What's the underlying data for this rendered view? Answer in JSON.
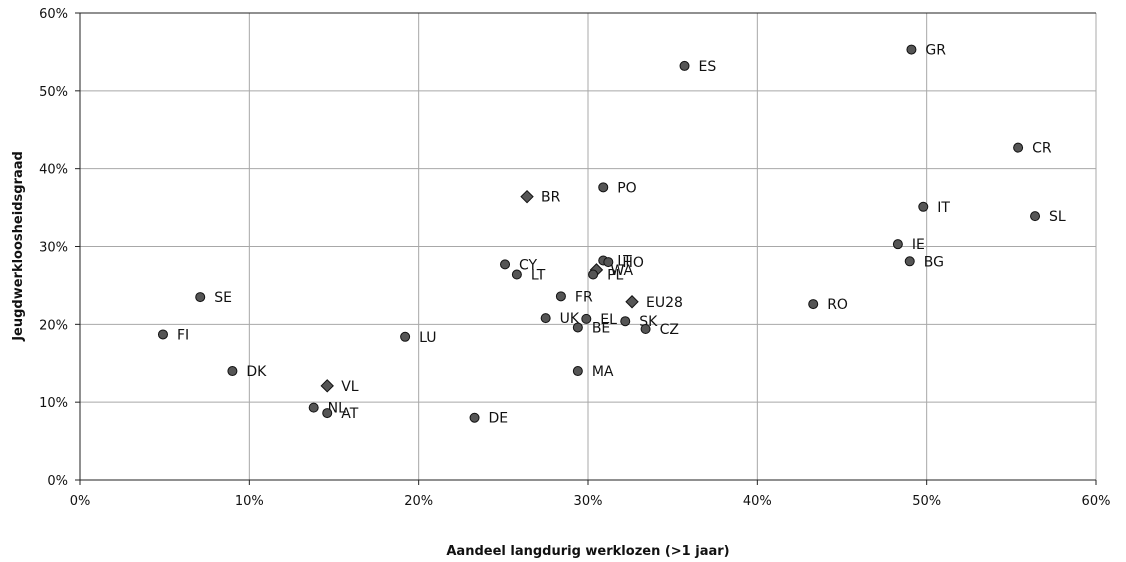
{
  "chart_data": {
    "type": "scatter",
    "xlabel": "Aandeel langdurig werklozen (>1 jaar)",
    "ylabel": "Jeugdwerkloosheidsgraad",
    "xlim": [
      0,
      60
    ],
    "ylim": [
      0,
      60
    ],
    "x_ticks": [
      "0%",
      "10%",
      "20%",
      "30%",
      "40%",
      "50%",
      "60%"
    ],
    "y_ticks": [
      "0%",
      "10%",
      "20%",
      "30%",
      "40%",
      "50%",
      "60%"
    ],
    "grid": true,
    "marker_color": "#555555",
    "points": [
      {
        "label": "ES",
        "x": 35.7,
        "y": 53.2,
        "shape": "circle"
      },
      {
        "label": "GR",
        "x": 49.1,
        "y": 55.3,
        "shape": "circle"
      },
      {
        "label": "CR",
        "x": 55.4,
        "y": 42.7,
        "shape": "circle"
      },
      {
        "label": "PO",
        "x": 30.9,
        "y": 37.6,
        "shape": "circle"
      },
      {
        "label": "BR",
        "x": 26.4,
        "y": 36.4,
        "shape": "diamond"
      },
      {
        "label": "IT",
        "x": 49.8,
        "y": 35.1,
        "shape": "circle"
      },
      {
        "label": "SL",
        "x": 56.4,
        "y": 33.9,
        "shape": "circle"
      },
      {
        "label": "IE",
        "x": 48.3,
        "y": 30.3,
        "shape": "circle"
      },
      {
        "label": "BG",
        "x": 49.0,
        "y": 28.1,
        "shape": "circle"
      },
      {
        "label": "LT",
        "x": 30.9,
        "y": 28.2,
        "shape": "circle"
      },
      {
        "label": "HO",
        "x": 31.2,
        "y": 28.0,
        "shape": "circle"
      },
      {
        "label": "WA",
        "x": 30.5,
        "y": 27.0,
        "shape": "diamond"
      },
      {
        "label": "PL",
        "x": 30.3,
        "y": 26.4,
        "shape": "circle"
      },
      {
        "label": "CY",
        "x": 25.1,
        "y": 27.7,
        "shape": "circle"
      },
      {
        "label": "LT",
        "x": 25.8,
        "y": 26.4,
        "shape": "circle"
      },
      {
        "label": "FR",
        "x": 28.4,
        "y": 23.6,
        "shape": "circle"
      },
      {
        "label": "EU28",
        "x": 32.6,
        "y": 22.9,
        "shape": "diamond"
      },
      {
        "label": "RO",
        "x": 43.3,
        "y": 22.6,
        "shape": "circle"
      },
      {
        "label": "SE",
        "x": 7.1,
        "y": 23.5,
        "shape": "circle"
      },
      {
        "label": "UK",
        "x": 27.5,
        "y": 20.8,
        "shape": "circle"
      },
      {
        "label": "EL",
        "x": 29.9,
        "y": 20.7,
        "shape": "circle"
      },
      {
        "label": "SK",
        "x": 32.2,
        "y": 20.4,
        "shape": "circle"
      },
      {
        "label": "BE",
        "x": 29.4,
        "y": 19.6,
        "shape": "circle"
      },
      {
        "label": "CZ",
        "x": 33.4,
        "y": 19.4,
        "shape": "circle"
      },
      {
        "label": "FI",
        "x": 4.9,
        "y": 18.7,
        "shape": "circle"
      },
      {
        "label": "LU",
        "x": 19.2,
        "y": 18.4,
        "shape": "circle"
      },
      {
        "label": "DK",
        "x": 9.0,
        "y": 14.0,
        "shape": "circle"
      },
      {
        "label": "MA",
        "x": 29.4,
        "y": 14.0,
        "shape": "circle"
      },
      {
        "label": "VL",
        "x": 14.6,
        "y": 12.1,
        "shape": "diamond"
      },
      {
        "label": "NL",
        "x": 13.8,
        "y": 9.3,
        "shape": "circle"
      },
      {
        "label": "AT",
        "x": 14.6,
        "y": 8.6,
        "shape": "circle"
      },
      {
        "label": "DE",
        "x": 23.3,
        "y": 8.0,
        "shape": "circle"
      }
    ]
  }
}
